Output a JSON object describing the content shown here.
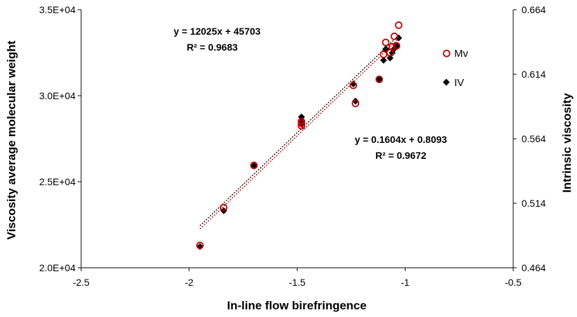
{
  "chart_data": {
    "type": "scatter",
    "xlabel": "In-line flow birefringence",
    "ylabel_left": "Viscosity average molecular weight",
    "ylabel_right": "Intrinsic viscosity",
    "xlim": [
      -2.5,
      -0.5
    ],
    "xticks": [
      -2.5,
      -2,
      -1.5,
      -1,
      -0.5
    ],
    "xtick_labels": [
      "-2.5",
      "-2",
      "-1.5",
      "-1",
      "-0.5"
    ],
    "ylim_left": [
      20000,
      35000
    ],
    "yticks_left": [
      20000,
      25000,
      30000,
      35000
    ],
    "ytick_labels_left": [
      "2.0E+04",
      "2.5E+04",
      "3.0E+04",
      "3.5E+04"
    ],
    "ylim_right": [
      0.464,
      0.664
    ],
    "yticks_right": [
      0.464,
      0.514,
      0.564,
      0.614,
      0.664
    ],
    "ytick_labels_right": [
      "0.464",
      "0.514",
      "0.564",
      "0.614",
      "0.664"
    ],
    "grid": false,
    "legend_position": "right",
    "series": [
      {
        "name": "Mv",
        "axis": "left",
        "marker": "open-circle",
        "color": "#c00000",
        "x": [
          -1.95,
          -1.84,
          -1.7,
          -1.48,
          -1.48,
          -1.48,
          -1.24,
          -1.23,
          -1.12,
          -1.1,
          -1.09,
          -1.07,
          -1.06,
          -1.05,
          -1.04,
          -1.03
        ],
        "y": [
          21300,
          23500,
          25950,
          28250,
          28400,
          28500,
          30600,
          29550,
          30950,
          32400,
          33100,
          32500,
          32850,
          33450,
          32900,
          34100
        ],
        "trendline": {
          "label_1": "y = 12025x + 45703",
          "label_2": "R² = 0.9683",
          "slope": 12025,
          "intercept": 45703,
          "x_range": [
            -1.95,
            -1.03
          ]
        }
      },
      {
        "name": "IV",
        "axis": "right",
        "marker": "filled-diamond",
        "color": "#000000",
        "x": [
          -1.95,
          -1.84,
          -1.7,
          -1.48,
          -1.48,
          -1.48,
          -1.24,
          -1.23,
          -1.12,
          -1.1,
          -1.09,
          -1.07,
          -1.06,
          -1.05,
          -1.04,
          -1.03
        ],
        "y": [
          0.4804,
          0.5082,
          0.5431,
          0.5751,
          0.5777,
          0.5809,
          0.6065,
          0.5931,
          0.6101,
          0.6248,
          0.6335,
          0.6266,
          0.6305,
          0.6338,
          0.636,
          0.6421
        ],
        "trendline": {
          "label_1": "y = 0.1604x + 0.8093",
          "label_2": "R² = 0.9672",
          "slope": 0.1604,
          "intercept": 0.8093,
          "x_range": [
            -1.95,
            -1.03
          ]
        }
      }
    ]
  }
}
